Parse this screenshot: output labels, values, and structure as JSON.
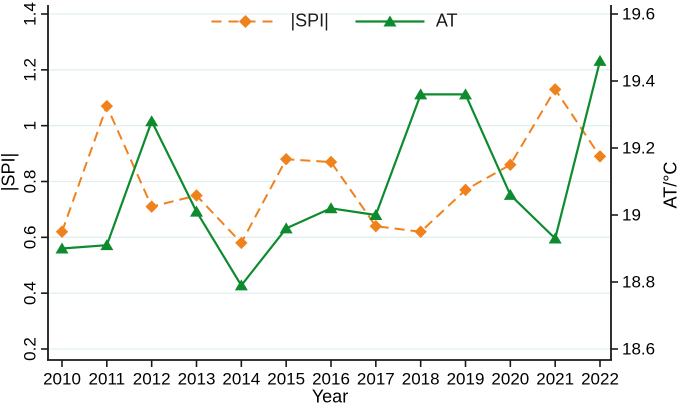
{
  "chart_data": {
    "type": "line",
    "title": "",
    "x": [
      2010,
      2011,
      2012,
      2013,
      2014,
      2015,
      2016,
      2017,
      2018,
      2019,
      2020,
      2021,
      2022
    ],
    "x_tick_labels": [
      "2010",
      "2011",
      "2012",
      "2013",
      "2014",
      "2015",
      "2016",
      "2017",
      "2018",
      "2019",
      "2020",
      "2021",
      "2022"
    ],
    "xlabel": "Year",
    "left_axis": {
      "label": "|SPI|",
      "range": [
        0.2,
        1.4
      ],
      "tick_values": [
        0.2,
        0.4,
        0.6,
        0.8,
        1.0,
        1.2,
        1.4
      ],
      "tick_labels": [
        "0.2",
        "0.4",
        "0.6",
        "0.8",
        "1",
        "1.2",
        "1.4"
      ]
    },
    "right_axis": {
      "label": "AT/°C",
      "range": [
        18.6,
        19.6
      ],
      "tick_values": [
        18.6,
        18.8,
        19.0,
        19.2,
        19.4,
        19.6
      ],
      "tick_labels": [
        "18.6",
        "18.8",
        "19",
        "19.2",
        "19.4",
        "19.6"
      ]
    },
    "series": [
      {
        "name": "|SPI|",
        "axis": "left",
        "color": "#F0821E",
        "line_style": "dashed",
        "marker": "diamond",
        "values": [
          0.62,
          1.07,
          0.71,
          0.75,
          0.58,
          0.88,
          0.87,
          0.64,
          0.62,
          0.77,
          0.86,
          1.13,
          0.89
        ]
      },
      {
        "name": "AT",
        "axis": "right",
        "color": "#0E8B2F",
        "line_style": "solid",
        "marker": "triangle",
        "values": [
          18.9,
          18.91,
          19.28,
          19.01,
          18.79,
          18.96,
          19.02,
          19.0,
          19.36,
          19.36,
          19.06,
          18.93,
          19.46
        ]
      }
    ],
    "grid": true,
    "gridlines_at": "left_axis_ticks",
    "legend_position": "top-center",
    "colors": {
      "gridline": "#E2EFEF",
      "axis": "#1A1A1A",
      "text": "#000000",
      "background": "#FFFFFF"
    }
  }
}
